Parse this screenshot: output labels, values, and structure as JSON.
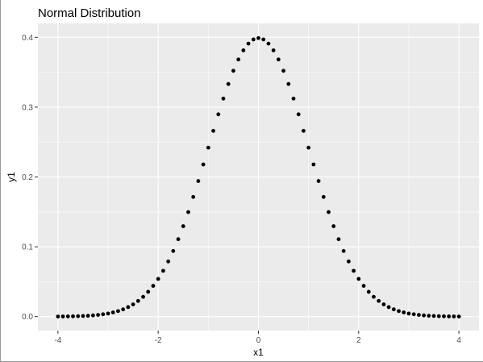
{
  "chart_data": {
    "type": "scatter",
    "title": "Normal Distribution",
    "xlabel": "x1",
    "ylabel": "y1",
    "xlim": [
      -4.4,
      4.4
    ],
    "ylim": [
      -0.02,
      0.42
    ],
    "x_ticks": [
      -4,
      -2,
      0,
      2,
      4
    ],
    "x_tick_labels": [
      "-4",
      "-2",
      "0",
      "2",
      "4"
    ],
    "y_ticks": [
      0.0,
      0.1,
      0.2,
      0.3,
      0.4
    ],
    "y_tick_labels": [
      "0.0",
      "0.1",
      "0.2",
      "0.3",
      "0.4"
    ],
    "grid": true,
    "legend": "none",
    "colors": {
      "panel_background": "#ebebeb",
      "grid": "#ffffff",
      "points": "#000000"
    },
    "series": [
      {
        "x": [
          -4.0,
          -3.9,
          -3.8,
          -3.7,
          -3.6,
          -3.5,
          -3.4,
          -3.3,
          -3.2,
          -3.1,
          -3.0,
          -2.9,
          -2.8,
          -2.7,
          -2.6,
          -2.5,
          -2.4,
          -2.3,
          -2.2,
          -2.1,
          -2.0,
          -1.9,
          -1.8,
          -1.7,
          -1.6,
          -1.5,
          -1.4,
          -1.3,
          -1.2,
          -1.1,
          -1.0,
          -0.9,
          -0.8,
          -0.7,
          -0.6,
          -0.5,
          -0.4,
          -0.3,
          -0.2,
          -0.1,
          0.0,
          0.1,
          0.2,
          0.3,
          0.4,
          0.5,
          0.6,
          0.7,
          0.8,
          0.9,
          1.0,
          1.1,
          1.2,
          1.3,
          1.4,
          1.5,
          1.6,
          1.7,
          1.8,
          1.9,
          2.0,
          2.1,
          2.2,
          2.3,
          2.4,
          2.5,
          2.6,
          2.7,
          2.8,
          2.9,
          3.0,
          3.1,
          3.2,
          3.3,
          3.4,
          3.5,
          3.6,
          3.7,
          3.8,
          3.9,
          4.0
        ],
        "y": [
          0.0001,
          0.0002,
          0.0003,
          0.0004,
          0.0006,
          0.0009,
          0.0012,
          0.0017,
          0.0024,
          0.0033,
          0.0044,
          0.006,
          0.0079,
          0.0104,
          0.0136,
          0.0175,
          0.0224,
          0.0283,
          0.0355,
          0.044,
          0.054,
          0.0656,
          0.079,
          0.094,
          0.1109,
          0.1295,
          0.1497,
          0.1714,
          0.1942,
          0.2179,
          0.242,
          0.2661,
          0.2897,
          0.3123,
          0.3332,
          0.3521,
          0.3683,
          0.3814,
          0.391,
          0.397,
          0.3989,
          0.397,
          0.391,
          0.3814,
          0.3683,
          0.3521,
          0.3332,
          0.3123,
          0.2897,
          0.2661,
          0.242,
          0.2179,
          0.1942,
          0.1714,
          0.1497,
          0.1295,
          0.1109,
          0.094,
          0.079,
          0.0656,
          0.054,
          0.044,
          0.0355,
          0.0283,
          0.0224,
          0.0175,
          0.0136,
          0.0104,
          0.0079,
          0.006,
          0.0044,
          0.0033,
          0.0024,
          0.0017,
          0.0012,
          0.0009,
          0.0006,
          0.0004,
          0.0003,
          0.0002,
          0.0001
        ]
      }
    ]
  }
}
